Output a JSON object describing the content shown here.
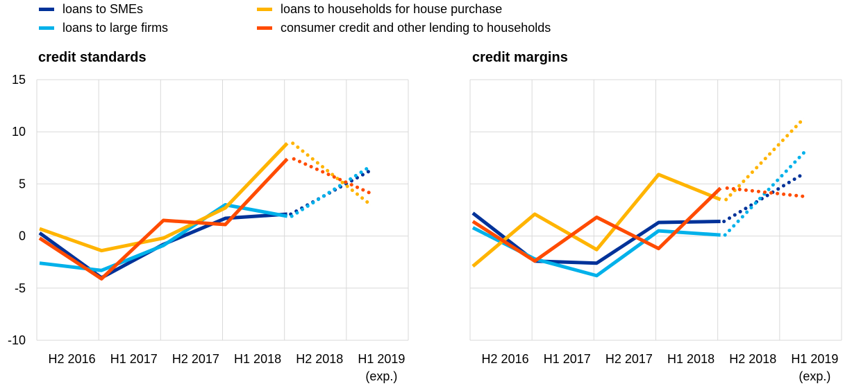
{
  "legend": [
    {
      "label": "loans to SMEs",
      "color": "#003299"
    },
    {
      "label": "loans to large firms",
      "color": "#00b1ea"
    },
    {
      "label": "loans to households for house purchase",
      "color": "#ffb400"
    },
    {
      "label": "consumer credit and other lending to households",
      "color": "#ff4b00"
    }
  ],
  "chart_data": [
    {
      "type": "line",
      "title": "credit standards",
      "categories": [
        "H2 2016",
        "H1 2017",
        "H2 2017",
        "H1 2018",
        "H2 2018",
        "H1 2019\n(exp.)"
      ],
      "category_lines": [
        [
          "H2 2016"
        ],
        [
          "H1 2017"
        ],
        [
          "H2 2017"
        ],
        [
          "H1 2018"
        ],
        [
          "H2 2018"
        ],
        [
          "H1 2019",
          "(exp.)"
        ]
      ],
      "ylim": [
        -10,
        15
      ],
      "yticks": [
        -10,
        -5,
        0,
        5,
        10,
        15
      ],
      "expected_style": "dotted segment from H2 2018 to H1 2019 (exp.)",
      "series": [
        {
          "name": "loans to SMEs",
          "color": "#003299",
          "values": [
            0.3,
            -4.0,
            -0.8,
            1.7,
            2.1,
            6.3
          ]
        },
        {
          "name": "loans to large firms",
          "color": "#00b1ea",
          "values": [
            -2.6,
            -3.3,
            -0.9,
            3.0,
            1.9,
            6.7
          ]
        },
        {
          "name": "loans to households for house purchase",
          "color": "#ffb400",
          "values": [
            0.7,
            -1.4,
            -0.2,
            2.7,
            8.9,
            3.0
          ]
        },
        {
          "name": "consumer credit and other lending to households",
          "color": "#ff4b00",
          "values": [
            -0.2,
            -4.1,
            1.5,
            1.1,
            7.4,
            4.1
          ]
        }
      ]
    },
    {
      "type": "line",
      "title": "credit margins",
      "categories": [
        "H2 2016",
        "H1 2017",
        "H2 2017",
        "H1 2018",
        "H2 2018",
        "H1 2019\n(exp.)"
      ],
      "category_lines": [
        [
          "H2 2016"
        ],
        [
          "H1 2017"
        ],
        [
          "H2 2017"
        ],
        [
          "H1 2018"
        ],
        [
          "H2 2018"
        ],
        [
          "H1 2019",
          "(exp.)"
        ]
      ],
      "ylim": [
        -10,
        15
      ],
      "yticks": [
        -10,
        -5,
        0,
        5,
        10,
        15
      ],
      "expected_style": "dotted segment from H2 2018 to H1 2019 (exp.)",
      "series": [
        {
          "name": "loans to SMEs",
          "color": "#003299",
          "values": [
            2.2,
            -2.4,
            -2.6,
            1.3,
            1.4,
            6.0
          ]
        },
        {
          "name": "loans to large firms",
          "color": "#00b1ea",
          "values": [
            0.8,
            -2.2,
            -3.8,
            0.5,
            0.1,
            8.0
          ]
        },
        {
          "name": "loans to households for house purchase",
          "color": "#ffb400",
          "values": [
            -2.9,
            2.1,
            -1.3,
            5.9,
            3.5,
            11.3
          ]
        },
        {
          "name": "consumer credit and other lending to households",
          "color": "#ff4b00",
          "values": [
            1.4,
            -2.4,
            1.8,
            -1.2,
            4.6,
            3.8
          ]
        }
      ]
    }
  ]
}
